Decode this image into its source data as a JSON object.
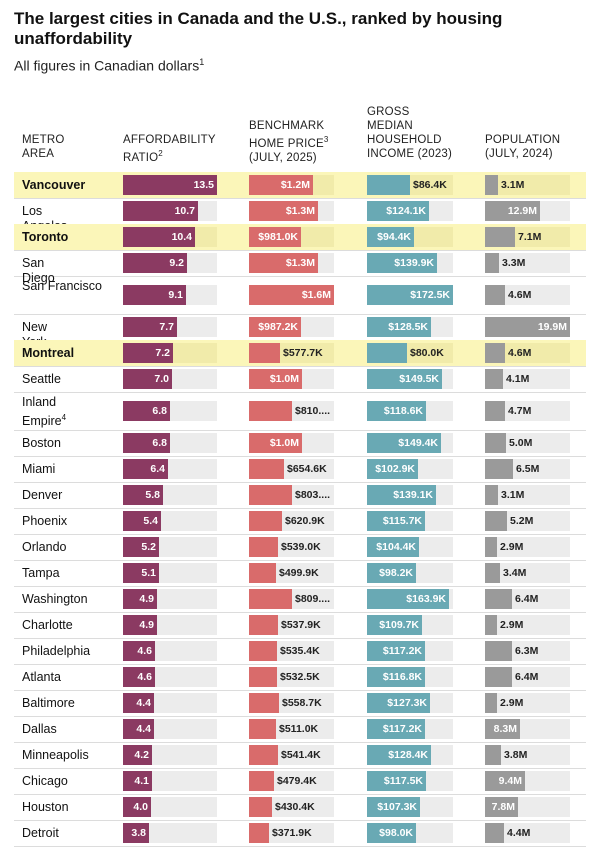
{
  "title": "The largest cities in Canada and the U.S., ranked by housing unaffordability",
  "subtitle": "All figures in Canadian dollars",
  "subtitle_note": "1",
  "headers": {
    "city": [
      "METRO",
      "AREA"
    ],
    "ratio": [
      "AFFORDABILITY",
      "RATIO"
    ],
    "ratio_note": "2",
    "price": [
      "BENCHMARK",
      "HOME PRICE",
      "(JULY, 2025)"
    ],
    "price_note": "3",
    "income": [
      "GROSS",
      "MEDIAN",
      "HOUSEHOLD",
      "INCOME (2023)"
    ],
    "population": [
      "POPULATION",
      "(JULY, 2024)"
    ]
  },
  "colors": {
    "ratio": "#8b3a62",
    "price": "#d96b6b",
    "income": "#69a9b4",
    "population": "#9a9a9a",
    "track": "#ececec",
    "highlight": "#fbf6b9",
    "highlight_track": "#f1ebaa"
  },
  "chart_data": {
    "type": "table",
    "columns": [
      "Metro area",
      "Affordability ratio",
      "Benchmark home price (July, 2025)",
      "Gross median household income (2023)",
      "Population (July, 2024)"
    ],
    "rows": [
      {
        "city": "Vancouver",
        "note": "",
        "canadian": true,
        "ratio": 13.5,
        "ratio_label": "13.5",
        "price": 1200000,
        "price_label": "$1.2M",
        "income": 86400,
        "income_label": "$86.4K",
        "population": 3.1,
        "population_label": "3.1M"
      },
      {
        "city": "Los Angeles",
        "note": "",
        "canadian": false,
        "ratio": 10.7,
        "ratio_label": "10.7",
        "price": 1300000,
        "price_label": "$1.3M",
        "income": 124100,
        "income_label": "$124.1K",
        "population": 12.9,
        "population_label": "12.9M"
      },
      {
        "city": "Toronto",
        "note": "",
        "canadian": true,
        "ratio": 10.4,
        "ratio_label": "10.4",
        "price": 981000,
        "price_label": "$981.0K",
        "income": 94400,
        "income_label": "$94.4K",
        "population": 7.1,
        "population_label": "7.1M"
      },
      {
        "city": "San Diego",
        "note": "",
        "canadian": false,
        "ratio": 9.2,
        "ratio_label": "9.2",
        "price": 1300000,
        "price_label": "$1.3M",
        "income": 139900,
        "income_label": "$139.9K",
        "population": 3.3,
        "population_label": "3.3M"
      },
      {
        "city": "San Francisco",
        "note": "",
        "canadian": false,
        "ratio": 9.1,
        "ratio_label": "9.1",
        "price": 1600000,
        "price_label": "$1.6M",
        "income": 172500,
        "income_label": "$172.5K",
        "population": 4.6,
        "population_label": "4.6M"
      },
      {
        "city": "New York",
        "note": "",
        "canadian": false,
        "ratio": 7.7,
        "ratio_label": "7.7",
        "price": 987200,
        "price_label": "$987.2K",
        "income": 128500,
        "income_label": "$128.5K",
        "population": 19.9,
        "population_label": "19.9M"
      },
      {
        "city": "Montreal",
        "note": "",
        "canadian": true,
        "ratio": 7.2,
        "ratio_label": "7.2",
        "price": 577700,
        "price_label": "$577.7K",
        "income": 80000,
        "income_label": "$80.0K",
        "population": 4.6,
        "population_label": "4.6M"
      },
      {
        "city": "Seattle",
        "note": "",
        "canadian": false,
        "ratio": 7.0,
        "ratio_label": "7.0",
        "price": 1000000,
        "price_label": "$1.0M",
        "income": 149500,
        "income_label": "$149.5K",
        "population": 4.1,
        "population_label": "4.1M"
      },
      {
        "city": "Inland Empire",
        "note": "4",
        "canadian": false,
        "ratio": 6.8,
        "ratio_label": "6.8",
        "price": 810000,
        "price_label": "$810....",
        "income": 118600,
        "income_label": "$118.6K",
        "population": 4.7,
        "population_label": "4.7M"
      },
      {
        "city": "Boston",
        "note": "",
        "canadian": false,
        "ratio": 6.8,
        "ratio_label": "6.8",
        "price": 1000000,
        "price_label": "$1.0M",
        "income": 149400,
        "income_label": "$149.4K",
        "population": 5.0,
        "population_label": "5.0M"
      },
      {
        "city": "Miami",
        "note": "",
        "canadian": false,
        "ratio": 6.4,
        "ratio_label": "6.4",
        "price": 654600,
        "price_label": "$654.6K",
        "income": 102900,
        "income_label": "$102.9K",
        "population": 6.5,
        "population_label": "6.5M"
      },
      {
        "city": "Denver",
        "note": "",
        "canadian": false,
        "ratio": 5.8,
        "ratio_label": "5.8",
        "price": 803000,
        "price_label": "$803....",
        "income": 139100,
        "income_label": "$139.1K",
        "population": 3.1,
        "population_label": "3.1M"
      },
      {
        "city": "Phoenix",
        "note": "",
        "canadian": false,
        "ratio": 5.4,
        "ratio_label": "5.4",
        "price": 620900,
        "price_label": "$620.9K",
        "income": 115700,
        "income_label": "$115.7K",
        "population": 5.2,
        "population_label": "5.2M"
      },
      {
        "city": "Orlando",
        "note": "",
        "canadian": false,
        "ratio": 5.2,
        "ratio_label": "5.2",
        "price": 539000,
        "price_label": "$539.0K",
        "income": 104400,
        "income_label": "$104.4K",
        "population": 2.9,
        "population_label": "2.9M"
      },
      {
        "city": "Tampa",
        "note": "",
        "canadian": false,
        "ratio": 5.1,
        "ratio_label": "5.1",
        "price": 499900,
        "price_label": "$499.9K",
        "income": 98200,
        "income_label": "$98.2K",
        "population": 3.4,
        "population_label": "3.4M"
      },
      {
        "city": "Washington",
        "note": "",
        "canadian": false,
        "ratio": 4.9,
        "ratio_label": "4.9",
        "price": 809000,
        "price_label": "$809....",
        "income": 163900,
        "income_label": "$163.9K",
        "population": 6.4,
        "population_label": "6.4M"
      },
      {
        "city": "Charlotte",
        "note": "",
        "canadian": false,
        "ratio": 4.9,
        "ratio_label": "4.9",
        "price": 537900,
        "price_label": "$537.9K",
        "income": 109700,
        "income_label": "$109.7K",
        "population": 2.9,
        "population_label": "2.9M"
      },
      {
        "city": "Philadelphia",
        "note": "",
        "canadian": false,
        "ratio": 4.6,
        "ratio_label": "4.6",
        "price": 535400,
        "price_label": "$535.4K",
        "income": 117200,
        "income_label": "$117.2K",
        "population": 6.3,
        "population_label": "6.3M"
      },
      {
        "city": "Atlanta",
        "note": "",
        "canadian": false,
        "ratio": 4.6,
        "ratio_label": "4.6",
        "price": 532500,
        "price_label": "$532.5K",
        "income": 116800,
        "income_label": "$116.8K",
        "population": 6.4,
        "population_label": "6.4M"
      },
      {
        "city": "Baltimore",
        "note": "",
        "canadian": false,
        "ratio": 4.4,
        "ratio_label": "4.4",
        "price": 558700,
        "price_label": "$558.7K",
        "income": 127300,
        "income_label": "$127.3K",
        "population": 2.9,
        "population_label": "2.9M"
      },
      {
        "city": "Dallas",
        "note": "",
        "canadian": false,
        "ratio": 4.4,
        "ratio_label": "4.4",
        "price": 511000,
        "price_label": "$511.0K",
        "income": 117200,
        "income_label": "$117.2K",
        "population": 8.3,
        "population_label": "8.3M"
      },
      {
        "city": "Minneapolis",
        "note": "",
        "canadian": false,
        "ratio": 4.2,
        "ratio_label": "4.2",
        "price": 541400,
        "price_label": "$541.4K",
        "income": 128400,
        "income_label": "$128.4K",
        "population": 3.8,
        "population_label": "3.8M"
      },
      {
        "city": "Chicago",
        "note": "",
        "canadian": false,
        "ratio": 4.1,
        "ratio_label": "4.1",
        "price": 479400,
        "price_label": "$479.4K",
        "income": 117500,
        "income_label": "$117.5K",
        "population": 9.4,
        "population_label": "9.4M"
      },
      {
        "city": "Houston",
        "note": "",
        "canadian": false,
        "ratio": 4.0,
        "ratio_label": "4.0",
        "price": 430400,
        "price_label": "$430.4K",
        "income": 107300,
        "income_label": "$107.3K",
        "population": 7.8,
        "population_label": "7.8M"
      },
      {
        "city": "Detroit",
        "note": "",
        "canadian": false,
        "ratio": 3.8,
        "ratio_label": "3.8",
        "price": 371900,
        "price_label": "$371.9K",
        "income": 98000,
        "income_label": "$98.0K",
        "population": 4.4,
        "population_label": "4.4M"
      }
    ]
  }
}
